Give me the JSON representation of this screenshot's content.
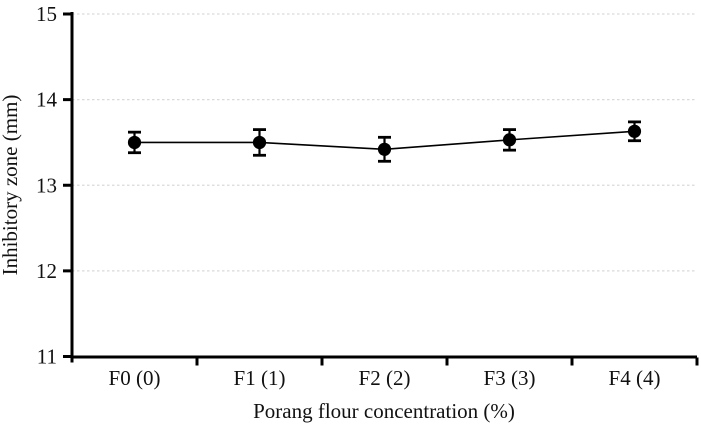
{
  "figure": {
    "background": "#ffffff"
  },
  "chart_data": {
    "type": "line",
    "title": "",
    "categories": [
      "F0 (0)",
      "F1 (1)",
      "F2 (2)",
      "F3 (3)",
      "F4 (4)"
    ],
    "series": [
      {
        "name": "Inhibitory zone",
        "values": [
          13.5,
          13.5,
          13.42,
          13.53,
          13.63
        ],
        "errors": [
          0.12,
          0.15,
          0.14,
          0.12,
          0.11
        ],
        "marker": "filled-circle",
        "color": "#000000"
      }
    ],
    "xlabel": "Porang flour concentration (%)",
    "ylabel": "Inhibitory zone (mm)",
    "ylim": [
      11,
      15
    ],
    "yticks": [
      11,
      12,
      13,
      14,
      15
    ],
    "grid": "horizontal",
    "grid_style": "dashed",
    "grid_color": "#d9d9d9",
    "axis_color": "#000000",
    "text_color": "#111111",
    "legend": "none",
    "error_bars": true
  }
}
